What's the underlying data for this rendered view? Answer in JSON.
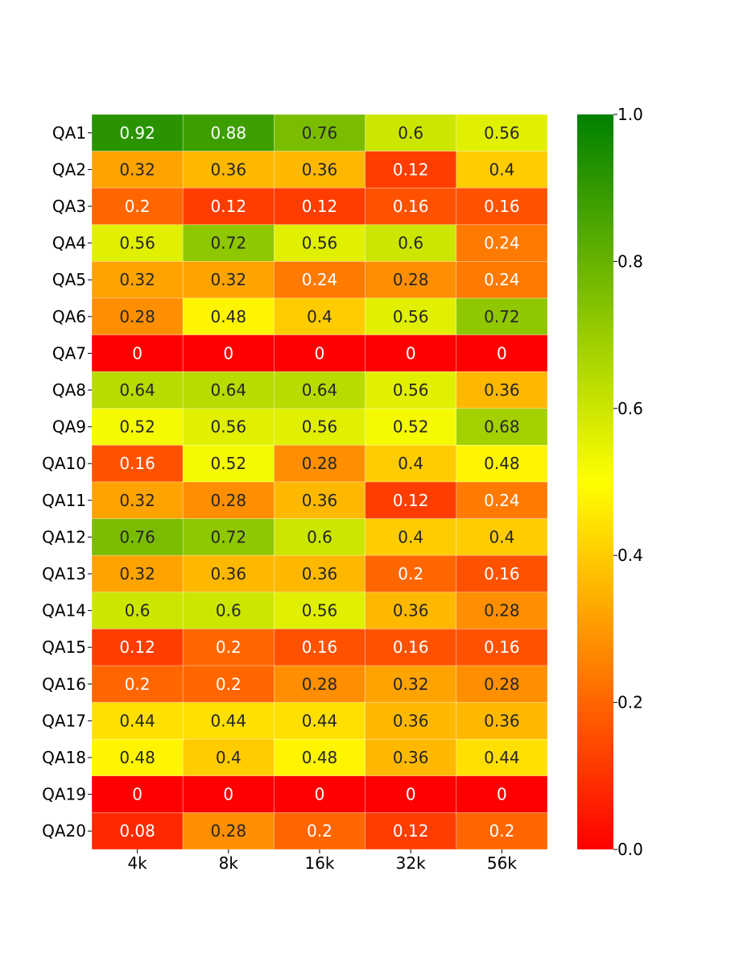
{
  "chart_data": {
    "type": "heatmap",
    "title": "",
    "xlabel": "",
    "ylabel": "",
    "columns": [
      "4k",
      "8k",
      "16k",
      "32k",
      "56k"
    ],
    "rows": [
      "QA1",
      "QA2",
      "QA3",
      "QA4",
      "QA5",
      "QA6",
      "QA7",
      "QA8",
      "QA9",
      "QA10",
      "QA11",
      "QA12",
      "QA13",
      "QA14",
      "QA15",
      "QA16",
      "QA17",
      "QA18",
      "QA19",
      "QA20"
    ],
    "values": [
      [
        0.92,
        0.88,
        0.76,
        0.6,
        0.56
      ],
      [
        0.32,
        0.36,
        0.36,
        0.12,
        0.4
      ],
      [
        0.2,
        0.12,
        0.12,
        0.16,
        0.16
      ],
      [
        0.56,
        0.72,
        0.56,
        0.6,
        0.24
      ],
      [
        0.32,
        0.32,
        0.24,
        0.28,
        0.24
      ],
      [
        0.28,
        0.48,
        0.4,
        0.56,
        0.72
      ],
      [
        0,
        0,
        0,
        0,
        0
      ],
      [
        0.64,
        0.64,
        0.64,
        0.56,
        0.36
      ],
      [
        0.52,
        0.56,
        0.56,
        0.52,
        0.68
      ],
      [
        0.16,
        0.52,
        0.28,
        0.4,
        0.48
      ],
      [
        0.32,
        0.28,
        0.36,
        0.12,
        0.24
      ],
      [
        0.76,
        0.72,
        0.6,
        0.4,
        0.4
      ],
      [
        0.32,
        0.36,
        0.36,
        0.2,
        0.16
      ],
      [
        0.6,
        0.6,
        0.56,
        0.36,
        0.28
      ],
      [
        0.12,
        0.2,
        0.16,
        0.16,
        0.16
      ],
      [
        0.2,
        0.2,
        0.28,
        0.32,
        0.28
      ],
      [
        0.44,
        0.44,
        0.44,
        0.36,
        0.36
      ],
      [
        0.48,
        0.4,
        0.48,
        0.36,
        0.44
      ],
      [
        0,
        0,
        0,
        0,
        0
      ],
      [
        0.08,
        0.28,
        0.2,
        0.12,
        0.2
      ]
    ],
    "labels": [
      [
        "0.92",
        "0.88",
        "0.76",
        "0.6",
        "0.56"
      ],
      [
        "0.32",
        "0.36",
        "0.36",
        "0.12",
        "0.4"
      ],
      [
        "0.2",
        "0.12",
        "0.12",
        "0.16",
        "0.16"
      ],
      [
        "0.56",
        "0.72",
        "0.56",
        "0.6",
        "0.24"
      ],
      [
        "0.32",
        "0.32",
        "0.24",
        "0.28",
        "0.24"
      ],
      [
        "0.28",
        "0.48",
        "0.4",
        "0.56",
        "0.72"
      ],
      [
        "0",
        "0",
        "0",
        "0",
        "0"
      ],
      [
        "0.64",
        "0.64",
        "0.64",
        "0.56",
        "0.36"
      ],
      [
        "0.52",
        "0.56",
        "0.56",
        "0.52",
        "0.68"
      ],
      [
        "0.16",
        "0.52",
        "0.28",
        "0.4",
        "0.48"
      ],
      [
        "0.32",
        "0.28",
        "0.36",
        "0.12",
        "0.24"
      ],
      [
        "0.76",
        "0.72",
        "0.6",
        "0.4",
        "0.4"
      ],
      [
        "0.32",
        "0.36",
        "0.36",
        "0.2",
        "0.16"
      ],
      [
        "0.6",
        "0.6",
        "0.56",
        "0.36",
        "0.28"
      ],
      [
        "0.12",
        "0.2",
        "0.16",
        "0.16",
        "0.16"
      ],
      [
        "0.2",
        "0.2",
        "0.28",
        "0.32",
        "0.28"
      ],
      [
        "0.44",
        "0.44",
        "0.44",
        "0.36",
        "0.36"
      ],
      [
        "0.48",
        "0.4",
        "0.48",
        "0.36",
        "0.44"
      ],
      [
        "0",
        "0",
        "0",
        "0",
        "0"
      ],
      [
        "0.08",
        "0.28",
        "0.2",
        "0.12",
        "0.2"
      ]
    ],
    "vmin": 0,
    "vmax": 1,
    "colormap": [
      "#ff0000",
      "#ffff00",
      "#008000"
    ],
    "colorbar_ticks": [
      "0.0",
      "0.2",
      "0.4",
      "0.6",
      "0.8",
      "1.0"
    ],
    "grid": false,
    "legend": "colorbar-right"
  }
}
